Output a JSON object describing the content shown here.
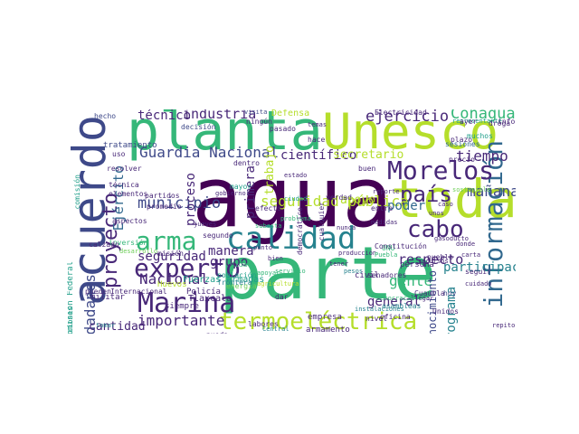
{
  "words": [
    "agua",
    "parte",
    "planta",
    "acuerdo",
    "Unesco",
    "toda",
    "información",
    "calidad",
    "Marina",
    "experto",
    "termoeléctrica",
    "Morelos",
    "país",
    "arma",
    "cabo",
    "Guardia Nacional",
    "municipio",
    "proyecto",
    "ejercicio",
    "Conagua",
    "mañana",
    "tiempo",
    "seguridad pública",
    "importante",
    "industria",
    "técnico",
    "científico",
    "secretario",
    "poder",
    "apoyo",
    "gente",
    "manera",
    "Nacional",
    "seguridad",
    "grupo",
    "respecto",
    "participación",
    "programa",
    "ciudadanos",
    "cantidad",
    "Ejército",
    "proceso",
    "trabajo",
    "primera",
    "general",
    "reconocimiento",
    "Fuerzas Armadas",
    "Tlaxcala",
    "Defensa",
    "Electricidad",
    "sostenible",
    "comisión",
    "servicio",
    "producción",
    "desarrollo",
    "problema",
    "pesos",
    "nivel",
    "verdad",
    "civil",
    "llegar",
    "empresa",
    "agricultura",
    "armamento",
    "asambleas",
    "representante",
    "población",
    "subasta",
    "ciudad",
    "instalaciones",
    "informe",
    "plazo",
    "hecho",
    "visita",
    "ningún",
    "decisión",
    "tratamiento",
    "pasado",
    "temas",
    "resolver",
    "Comisión Federal",
    "recomendaciones",
    "técnica",
    "elementos",
    "aspectos",
    "inversión",
    "calzado",
    "tomar",
    "pueden",
    "militar",
    "Huevos",
    "Policía",
    "siempre",
    "energía",
    "democracia",
    "Unidos",
    "Central",
    "hace",
    "pueda",
    "labores",
    "derecho",
    "dar",
    "ONU",
    "carta",
    "seguir",
    "hoy",
    "repito",
    "persona",
    "pueblo",
    "senadores",
    "oficina",
    "Cuautla",
    "Puebla",
    "Constitución",
    "reporte",
    "gasoducto",
    "recursos",
    "donde",
    "democrático",
    "cualquier",
    "misión",
    "bien",
    "muchos",
    "droga",
    "ayer",
    "precio",
    "buen",
    "apoyar",
    "sesiones",
    "uso",
    "partidos",
    "promedio",
    "gobierno",
    "segundo",
    "frontera",
    "Internacional",
    "jueves",
    "unos",
    "efecto",
    "cuidado",
    "mayor",
    "medidas",
    "dentro",
    "estado",
    "entre",
    "nunca",
    "punto",
    "tener",
    "caso",
    "vida"
  ],
  "palette": [
    "#440154",
    "#482878",
    "#3e4989",
    "#31688e",
    "#26828e",
    "#1f9e89",
    "#35b779",
    "#6ece58",
    "#b5de2b",
    "#fde725"
  ]
}
